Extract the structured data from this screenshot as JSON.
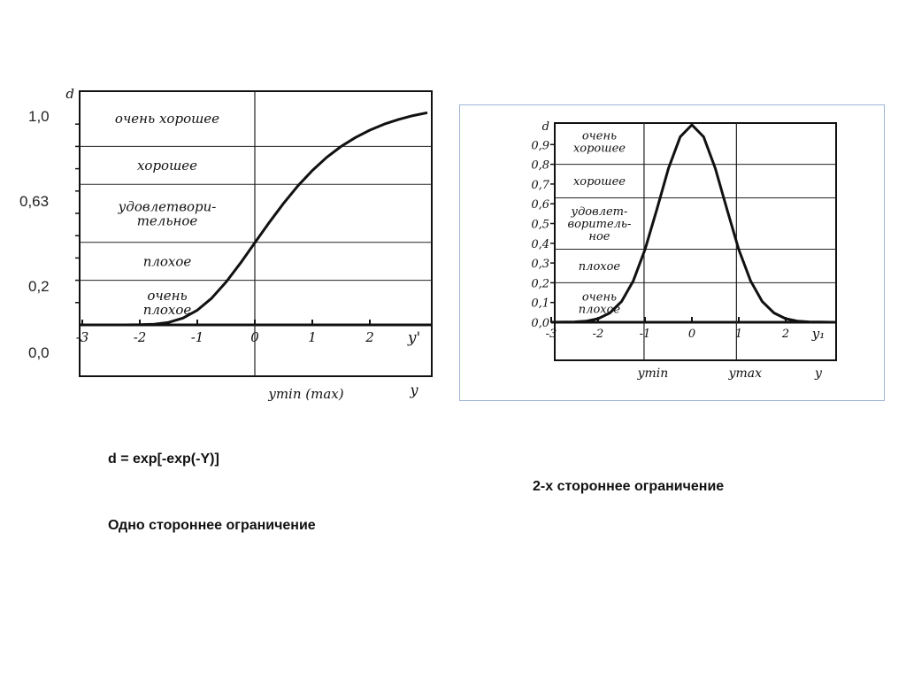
{
  "slide": {
    "left_axis_labels": [
      "1,0",
      "0,63",
      "0,2",
      "0,0"
    ],
    "formula": "d = exp[-exp(-Y)]",
    "caption_two_sided": "2-х стороннее ограничение",
    "caption_one_sided": "Одно стороннее ограничение"
  },
  "chart_data": [
    {
      "type": "line",
      "title": "",
      "ylabel": "d",
      "xlabel": "y'",
      "xlabel2": "y",
      "xmark_label": "ymin (max)",
      "xlim": [
        -3,
        3
      ],
      "ylim": [
        0,
        1
      ],
      "x_ticks": [
        "-3",
        "-2",
        "-1",
        "0",
        "1",
        "2"
      ],
      "bands": [
        0.2,
        0.37,
        0.63,
        0.8
      ],
      "band_labels": [
        [
          "очень",
          "плохое"
        ],
        [
          "плохое"
        ],
        [
          "удовлетвори-",
          "тельное"
        ],
        [
          "хорошее"
        ],
        [
          "очень хорошее"
        ]
      ],
      "vertical_lines": [
        0
      ],
      "x": [
        -3,
        -2.75,
        -2.5,
        -2.25,
        -2,
        -1.75,
        -1.5,
        -1.25,
        -1,
        -0.75,
        -0.5,
        -0.25,
        0,
        0.25,
        0.5,
        0.75,
        1,
        1.25,
        1.5,
        1.75,
        2,
        2.25,
        2.5,
        2.75,
        3
      ],
      "y": [
        0,
        0,
        0,
        0.0001,
        0.0006,
        0.0032,
        0.0113,
        0.0305,
        0.066,
        0.12,
        0.192,
        0.277,
        0.368,
        0.459,
        0.545,
        0.624,
        0.692,
        0.751,
        0.8,
        0.84,
        0.873,
        0.9,
        0.921,
        0.938,
        0.951
      ],
      "line_color": "#111111"
    },
    {
      "type": "line",
      "title": "",
      "ylabel": "d",
      "xlabel": "y₁",
      "xlabel2": "y",
      "xmark_labels": [
        "ymin",
        "ymax"
      ],
      "xlim": [
        -3,
        3
      ],
      "ylim": [
        0,
        1
      ],
      "y_ticks": [
        "0,0",
        "0,1",
        "0,2",
        "0,3",
        "0,4",
        "0,5",
        "0,6",
        "0,7",
        "0,8",
        "0,9"
      ],
      "x_ticks": [
        "-3",
        "-2",
        "-1",
        "0",
        "1",
        "2"
      ],
      "bands": [
        0.2,
        0.37,
        0.63,
        0.8
      ],
      "band_labels": [
        [
          "очень",
          "плохое"
        ],
        [
          "плохое"
        ],
        [
          "удовлет-",
          "воритель-",
          "ное"
        ],
        [
          "хорошее"
        ],
        [
          "очень",
          "хорошее"
        ]
      ],
      "vertical_lines": [
        -1.02,
        0.95
      ],
      "x": [
        -3,
        -2.75,
        -2.5,
        -2.25,
        -2,
        -1.75,
        -1.5,
        -1.25,
        -1,
        -0.75,
        -0.5,
        -0.25,
        0,
        0.25,
        0.5,
        0.75,
        1,
        1.25,
        1.5,
        1.75,
        2,
        2.25,
        2.5,
        2.75,
        3
      ],
      "y": [
        0,
        0.001,
        0.002,
        0.006,
        0.018,
        0.047,
        0.105,
        0.21,
        0.368,
        0.57,
        0.779,
        0.939,
        1,
        0.939,
        0.779,
        0.57,
        0.368,
        0.21,
        0.105,
        0.047,
        0.018,
        0.006,
        0.002,
        0.001,
        0
      ],
      "line_color": "#111111",
      "frame_color": "#9db5d6"
    }
  ]
}
